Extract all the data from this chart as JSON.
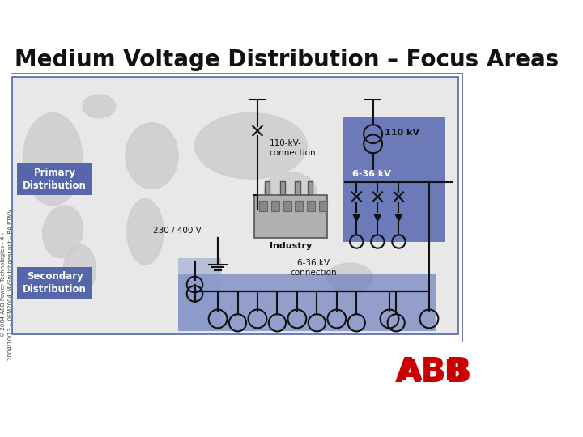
{
  "title": "Medium Voltage Distribution – Focus Areas",
  "title_fontsize": 20,
  "title_fontweight": "bold",
  "bg_color": "#ffffff",
  "content_bg": "#e8e8e8",
  "border_color": "#5566aa",
  "primary_label": "Primary\nDistribution",
  "secondary_label": "Secondary\nDistribution",
  "label_bg": "#5566aa",
  "label_fg": "#ffffff",
  "blue_dark": "#4455aa",
  "blue_mid": "#6677bb",
  "blue_light": "#8899cc",
  "side_text": "© 2004 ABB Power Technologies - 4 -\n2004/10/13 – OEM2004_MVSwitchgear.ppt – BA PTMV",
  "abb_red": "#cc0000",
  "label_110kv": "110 kV",
  "label_110kv_conn": "110-kV-\nconnection",
  "label_636kv": "6-36 kV",
  "label_636kv_conn": "6-36 kV\nconnection",
  "label_230v": "230 / 400 V",
  "label_industry": "Industry",
  "map_color": "#cccccc",
  "line_color": "#111111",
  "lw": 1.5
}
